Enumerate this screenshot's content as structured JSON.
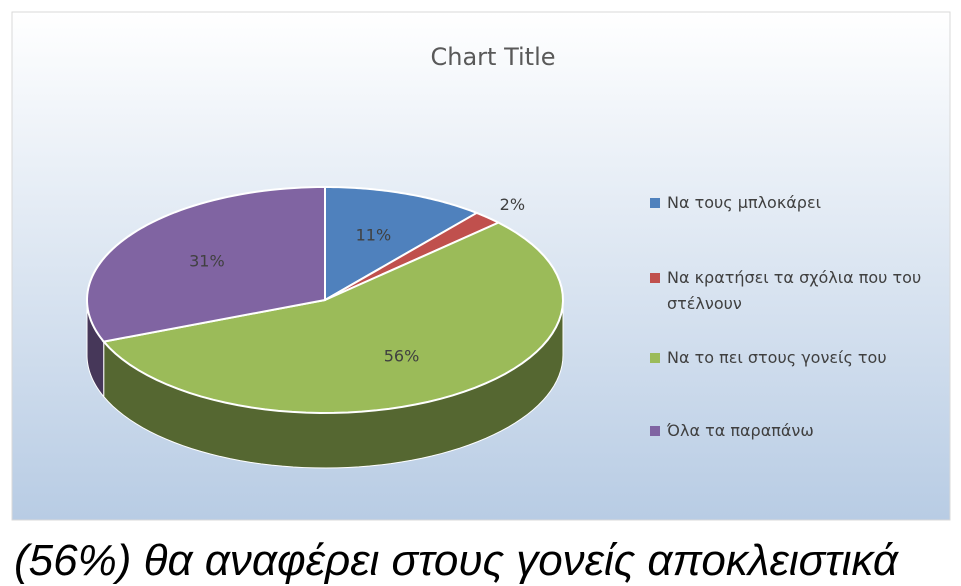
{
  "chart_data": {
    "type": "pie",
    "title": "Chart Title",
    "categories": [
      "Να τους μπλοκάρει",
      "Να κρατήσει τα σχόλια που του στέλνουν",
      "Να το πει στους γονείς του",
      "Όλα τα παραπάνω"
    ],
    "values": [
      11,
      2,
      56,
      31
    ],
    "value_labels": [
      "11%",
      "2%",
      "56%",
      "31%"
    ],
    "colors": [
      "#4f81bd",
      "#c0504d",
      "#9bbb59",
      "#8064a2"
    ],
    "legend": "right"
  },
  "caption": "(56%) θα αναφέρει στους γονείς αποκλειστικά"
}
